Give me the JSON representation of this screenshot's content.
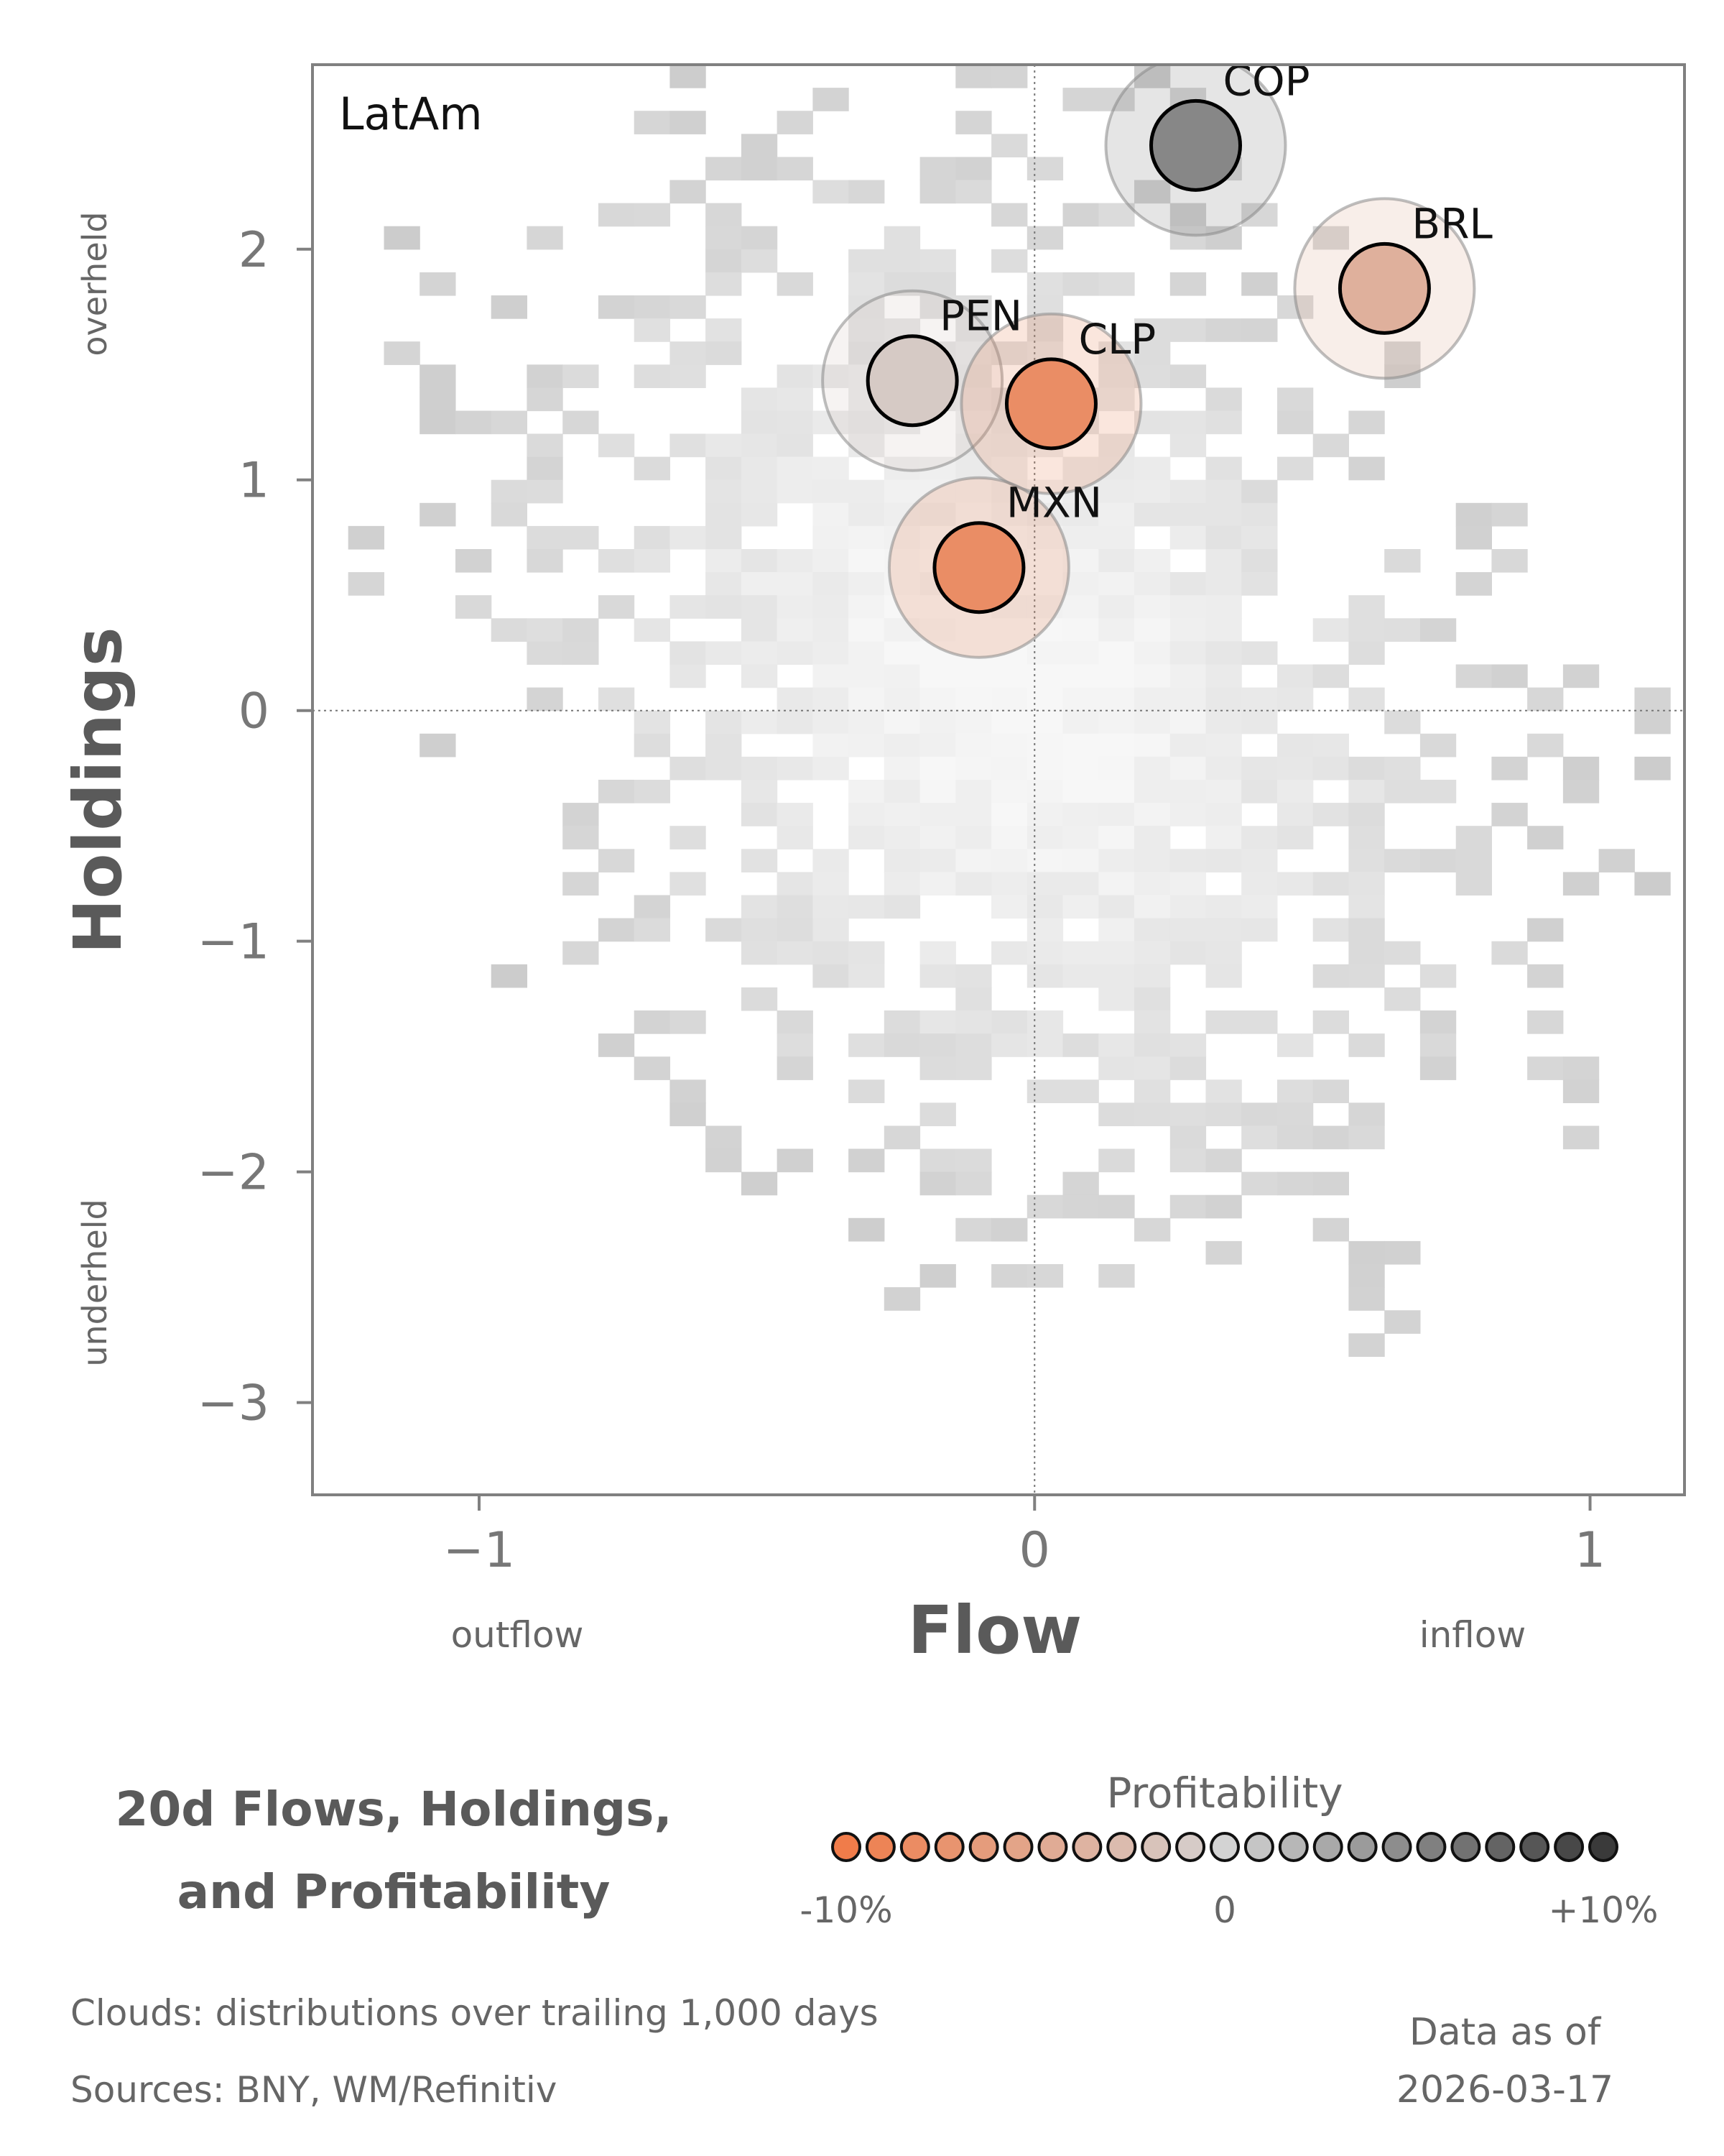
{
  "chart_data": {
    "type": "scatter",
    "panel_label": "LatAm",
    "xlabel": "Flow",
    "ylabel": "Holdings",
    "x_low_label": "outflow",
    "x_high_label": "inflow",
    "y_high_label": "overheld",
    "y_low_label": "underheld",
    "xlim": [
      -1.3,
      1.17
    ],
    "ylim": [
      -3.4,
      2.8
    ],
    "x_ticks": [
      -1,
      0,
      1
    ],
    "x_tick_labels": [
      "−1",
      "0",
      "1"
    ],
    "y_ticks": [
      -3,
      -2,
      -1,
      0,
      1,
      2
    ],
    "y_tick_labels": [
      "−3",
      "−2",
      "−1",
      "0",
      "1",
      "2"
    ],
    "reference_lines": {
      "x": 0,
      "y": 0
    },
    "points": [
      {
        "label": "COP",
        "x": 0.29,
        "y": 2.45,
        "profitability": 5
      },
      {
        "label": "BRL",
        "x": 0.63,
        "y": 1.83,
        "profitability": -4
      },
      {
        "label": "PEN",
        "x": -0.22,
        "y": 1.43,
        "profitability": -1
      },
      {
        "label": "CLP",
        "x": 0.03,
        "y": 1.33,
        "profitability": -8
      },
      {
        "label": "MXN",
        "x": -0.1,
        "y": 0.62,
        "profitability": -8
      }
    ],
    "cloud_note": "Clouds:  distributions over trailing 1,000 days"
  },
  "title_lines": [
    "20d Flows, Holdings,",
    "and Profitability"
  ],
  "legend": {
    "title": "Profitability",
    "min_label": "-10%",
    "mid_label": "0",
    "max_label": "+10%",
    "min_value": -10,
    "max_value": 10,
    "swatch_count": 23
  },
  "footer": {
    "clouds_note": "Clouds:  distributions over trailing 1,000 days",
    "sources": "Sources:  BNY, WM/Refinitiv",
    "data_as_of_label": "Data as of",
    "data_as_of_date": "2026-03-17"
  },
  "colors": {
    "negative": "#f07c4a",
    "neutral": "#d3d3d3",
    "positive": "#3a3a3a",
    "axis": "#808080",
    "text_gray": "#666666"
  }
}
